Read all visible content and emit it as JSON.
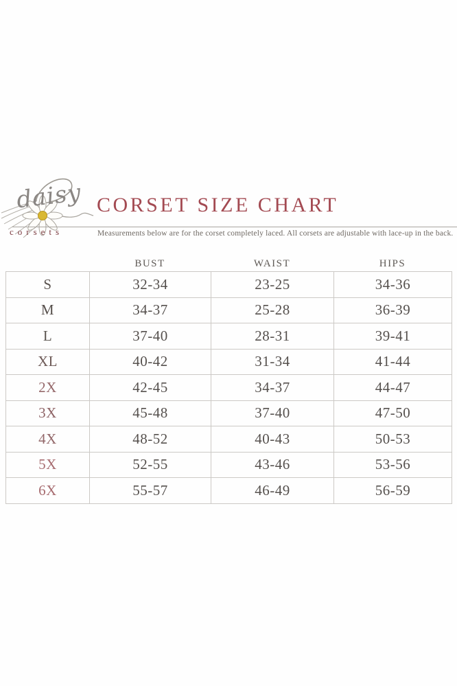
{
  "logo": {
    "script_text": "daisy",
    "sub_text": "corsets",
    "script_color": "#8a8683",
    "sub_color": "#7c3b40",
    "flower_center_color": "#d9b832"
  },
  "header": {
    "title": "CORSET SIZE CHART",
    "title_color": "#a34a52",
    "subtitle": "Measurements below are for the corset completely laced. All corsets are adjustable with lace-up in the back.",
    "subtitle_color": "#6e6862",
    "divider_color": "#a8a49f"
  },
  "chart_data": {
    "type": "table",
    "title": "CORSET SIZE CHART",
    "subtitle": "Measurements below are for the corset completely laced. All corsets are adjustable with lace-up in the back.",
    "columns": [
      "BUST",
      "WAIST",
      "HIPS"
    ],
    "rows": [
      {
        "size": "S",
        "bust": "32-34",
        "waist": "23-25",
        "hips": "34-36",
        "label_color": "#5b5450"
      },
      {
        "size": "M",
        "bust": "34-37",
        "waist": "25-28",
        "hips": "36-39",
        "label_color": "#564f4b"
      },
      {
        "size": "L",
        "bust": "37-40",
        "waist": "28-31",
        "hips": "39-41",
        "label_color": "#5b5550"
      },
      {
        "size": "XL",
        "bust": "40-42",
        "waist": "31-34",
        "hips": "41-44",
        "label_color": "#6d5a57"
      },
      {
        "size": "2X",
        "bust": "42-45",
        "waist": "34-37",
        "hips": "44-47",
        "label_color": "#95686a"
      },
      {
        "size": "3X",
        "bust": "45-48",
        "waist": "37-40",
        "hips": "47-50",
        "label_color": "#8e6365"
      },
      {
        "size": "4X",
        "bust": "48-52",
        "waist": "40-43",
        "hips": "50-53",
        "label_color": "#93686a"
      },
      {
        "size": "5X",
        "bust": "52-55",
        "waist": "43-46",
        "hips": "53-56",
        "label_color": "#a76c70"
      },
      {
        "size": "6X",
        "bust": "55-57",
        "waist": "46-49",
        "hips": "56-59",
        "label_color": "#a76c70"
      }
    ],
    "value_color": "#55504d",
    "header_color": "#5f5a56",
    "border_color": "#ccc9c5",
    "layout": {
      "grid": true,
      "legend": "none"
    }
  }
}
